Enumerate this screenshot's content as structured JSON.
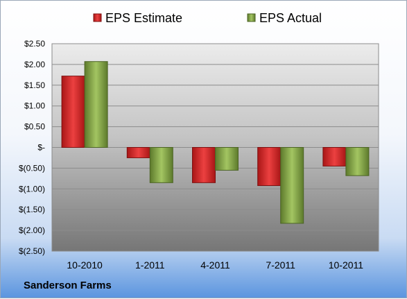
{
  "chart_data": {
    "type": "bar",
    "categories": [
      "10-2010",
      "1-2011",
      "4-2011",
      "7-2011",
      "10-2011"
    ],
    "series": [
      {
        "name": "EPS Estimate",
        "values": [
          1.72,
          -0.25,
          -0.85,
          -0.92,
          -0.45
        ]
      },
      {
        "name": "EPS Actual",
        "values": [
          2.07,
          -0.85,
          -0.55,
          -1.83,
          -0.68
        ]
      }
    ],
    "ylim": [
      -2.5,
      2.5
    ],
    "yticks": [
      2.5,
      2.0,
      1.5,
      1.0,
      0.5,
      0,
      -0.5,
      -1.0,
      -1.5,
      -2.0,
      -2.5
    ],
    "ytick_labels": [
      "$2.50",
      "$2.00",
      "$1.50",
      "$1.00",
      "$0.50",
      "$-",
      "$(0.50)",
      "$(1.00)",
      "$(1.50)",
      "$(2.00)",
      "$(2.50)"
    ],
    "grid": true,
    "legend_position": "top",
    "colors": {
      "estimate": "#d62b2b",
      "actual": "#86a84a"
    }
  },
  "caption": "Sanderson Farms"
}
